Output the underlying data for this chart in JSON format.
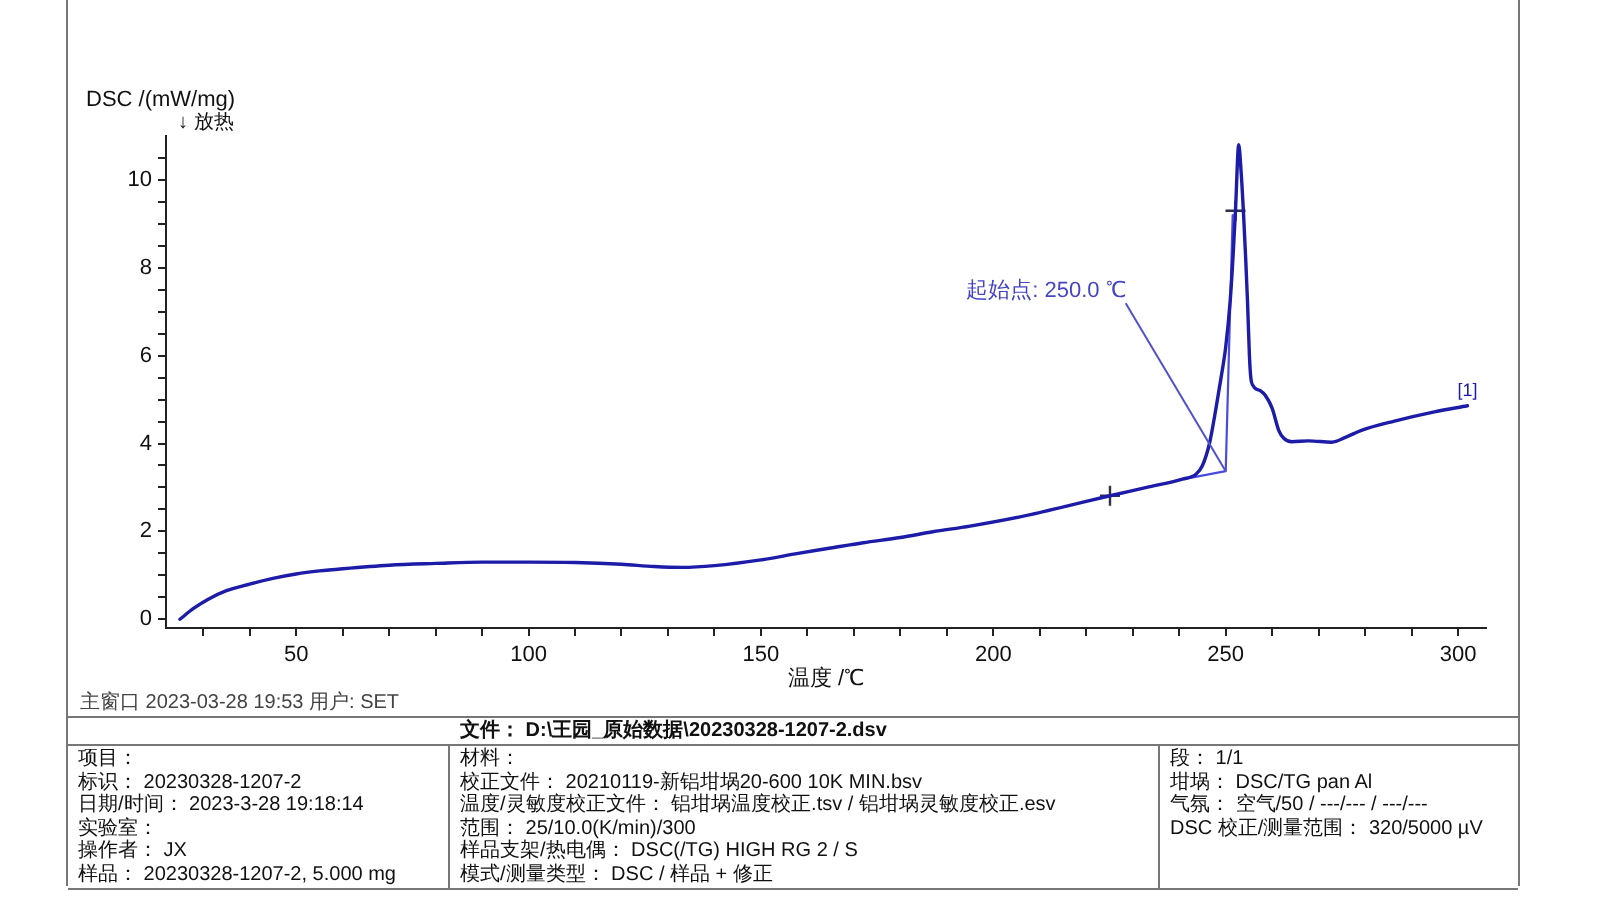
{
  "chart_data": {
    "type": "line",
    "xlabel": "温度 /℃",
    "ylabel": "DSC /(mW/mg)\n↓ 放热",
    "xlim": [
      22,
      306
    ],
    "xticks": [
      {
        "value": 30,
        "label": null
      },
      {
        "value": 40,
        "label": null
      },
      50,
      {
        "value": 60,
        "label": null
      },
      {
        "value": 70,
        "label": null
      },
      {
        "value": 80,
        "label": null
      },
      {
        "value": 90,
        "label": null
      },
      100,
      {
        "value": 110,
        "label": null
      },
      {
        "value": 120,
        "label": null
      },
      {
        "value": 130,
        "label": null
      },
      {
        "value": 140,
        "label": null
      },
      150,
      {
        "value": 160,
        "label": null
      },
      {
        "value": 170,
        "label": null
      },
      {
        "value": 180,
        "label": null
      },
      {
        "value": 190,
        "label": null
      },
      200,
      {
        "value": 210,
        "label": null
      },
      {
        "value": 220,
        "label": null
      },
      {
        "value": 230,
        "label": null
      },
      {
        "value": 240,
        "label": null
      },
      250,
      {
        "value": 260,
        "label": null
      },
      {
        "value": 270,
        "label": null
      },
      {
        "value": 280,
        "label": null
      },
      {
        "value": 290,
        "label": null
      },
      300
    ],
    "ylim": [
      -0.2,
      11
    ],
    "yticks": [
      0,
      {
        "value": 0.5,
        "label": null
      },
      {
        "value": 1,
        "label": null
      },
      {
        "value": 1.5,
        "label": null
      },
      2,
      {
        "value": 2.5,
        "label": null
      },
      {
        "value": 3,
        "label": null
      },
      {
        "value": 3.5,
        "label": null
      },
      4,
      {
        "value": 4.5,
        "label": null
      },
      {
        "value": 5,
        "label": null
      },
      {
        "value": 5.5,
        "label": null
      },
      6,
      {
        "value": 6.5,
        "label": null
      },
      {
        "value": 7,
        "label": null
      },
      {
        "value": 7.5,
        "label": null
      },
      8,
      {
        "value": 8.5,
        "label": null
      },
      {
        "value": 9,
        "label": null
      },
      {
        "value": 9.5,
        "label": null
      },
      10,
      {
        "value": 10.5,
        "label": null
      }
    ],
    "series": [
      {
        "name": "[1]",
        "color": "#1c1ca8",
        "x": [
          25,
          28,
          31,
          35,
          40,
          45,
          50,
          55,
          60,
          70,
          80,
          90,
          100,
          110,
          120,
          127,
          133,
          140,
          150,
          158,
          165,
          172,
          180,
          187,
          195,
          208,
          216,
          225.1,
          233,
          240.7,
          243.6,
          245,
          246.5,
          247.9,
          249,
          250,
          251,
          251.6,
          252.1,
          252.8,
          253.3,
          253.8,
          254.3,
          254.7,
          255.1,
          255.4,
          256,
          256.4,
          257.5,
          258.5,
          260,
          261.4,
          262.5,
          264.2,
          267.8,
          272.8,
          276,
          279.2,
          286.3,
          294.9,
          302
        ],
        "values": [
          0,
          0.25,
          0.45,
          0.65,
          0.8,
          0.93,
          1.03,
          1.1,
          1.15,
          1.23,
          1.27,
          1.3,
          1.3,
          1.29,
          1.25,
          1.2,
          1.18,
          1.22,
          1.35,
          1.5,
          1.62,
          1.74,
          1.86,
          1.99,
          2.12,
          2.38,
          2.58,
          2.81,
          3.0,
          3.19,
          3.3,
          3.5,
          4.0,
          4.8,
          5.5,
          6.2,
          7.3,
          8.3,
          9.3,
          10.8,
          10.2,
          9.3,
          8.2,
          7.2,
          6.0,
          5.5,
          5.3,
          5.25,
          5.2,
          5.1,
          4.8,
          4.3,
          4.12,
          4.04,
          4.06,
          4.03,
          4.15,
          4.3,
          4.51,
          4.72,
          4.86
        ]
      },
      {
        "type": "line",
        "color": "#4a4ae0",
        "x": [
          241.5,
          250,
          251.5
        ],
        "values": [
          3.2,
          3.37,
          9.2
        ]
      },
      {
        "type": "scatter",
        "color": "#303048",
        "marker": "cross",
        "x": [
          225.1,
          252.1
        ],
        "values": [
          2.81,
          9.3
        ]
      }
    ],
    "annotations": [
      {
        "text": "起始点: 250.0 ℃",
        "x": 250,
        "y": 3.37
      },
      "主窗口 2023-03-28 19:53 用户: SET",
      "文件： D:\\王园_原始数据\\20230328-1207-2.dsv",
      "项目：",
      "标识： 20230328-1207-2",
      "日期/时间： 2023-3-28 19:18:14",
      "实验室：",
      "操作者： JX",
      "样品： 20230328-1207-2, 5.000 mg",
      "材料：",
      "校正文件： 20210119-新铝坩埚20-600 10K MIN.bsv",
      "温度/灵敏度校正文件： 铝坩埚温度校正.tsv / 铝坩埚灵敏度校正.esv",
      "范围： 25/10.0(K/min)/300",
      "样品支架/热电偶： DSC(/TG) HIGH RG 2 / S",
      "模式/测量类型： DSC / 样品 + 修正",
      "段： 1/1",
      "坩埚： DSC/TG pan Al",
      "气氛： 空气/50 / ---/--- / ---/---",
      "DSC 校正/测量范围： 320/5000 µV"
    ]
  }
}
